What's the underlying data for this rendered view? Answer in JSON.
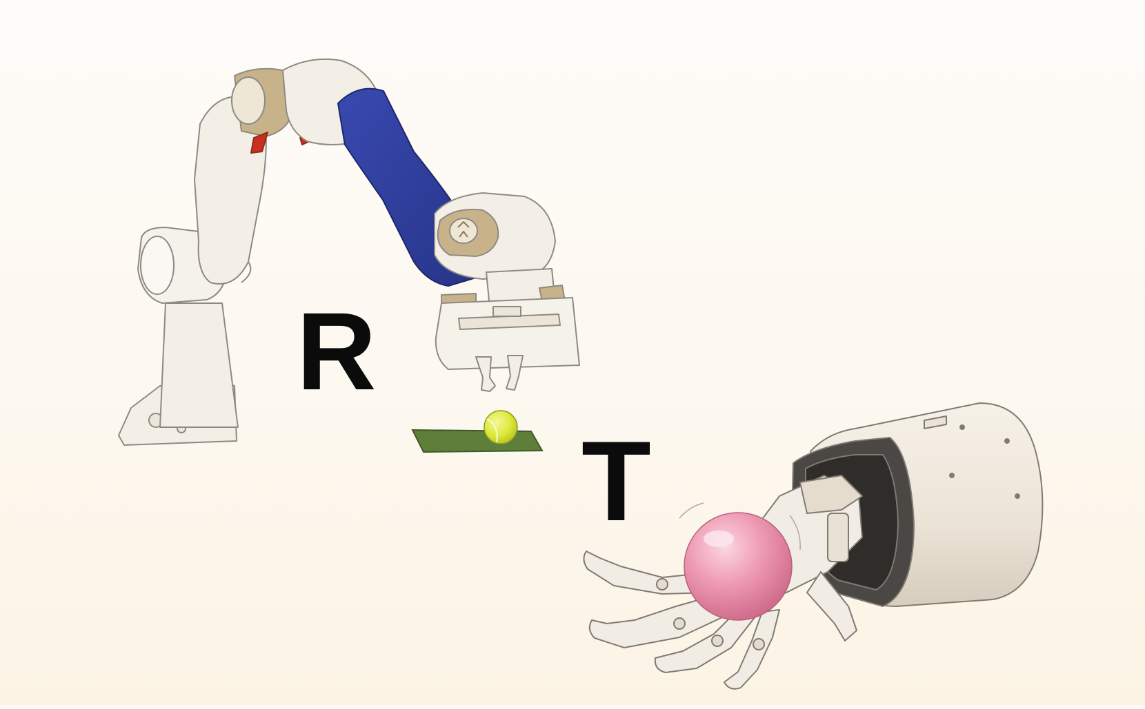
{
  "letters": {
    "first": "R",
    "second": "T"
  },
  "colors": {
    "background_top": "#fefcf9",
    "background_bottom": "#fcf3e4",
    "robot_white": "#f3efe6",
    "robot_outline": "#8d8a84",
    "joint_tan": "#c8b28a",
    "arm_blue": "#2f3f9c",
    "accent_red": "#c9301f",
    "mat_green": "#5d7f3a",
    "ball_yellow": "#dde83a",
    "sphere_pink": "#ee9ab2"
  },
  "objects": [
    "robot-arm",
    "gripper",
    "tennis-ball",
    "green-mat",
    "robotic-hand",
    "robot-wrist-cylinder",
    "pink-sphere"
  ]
}
